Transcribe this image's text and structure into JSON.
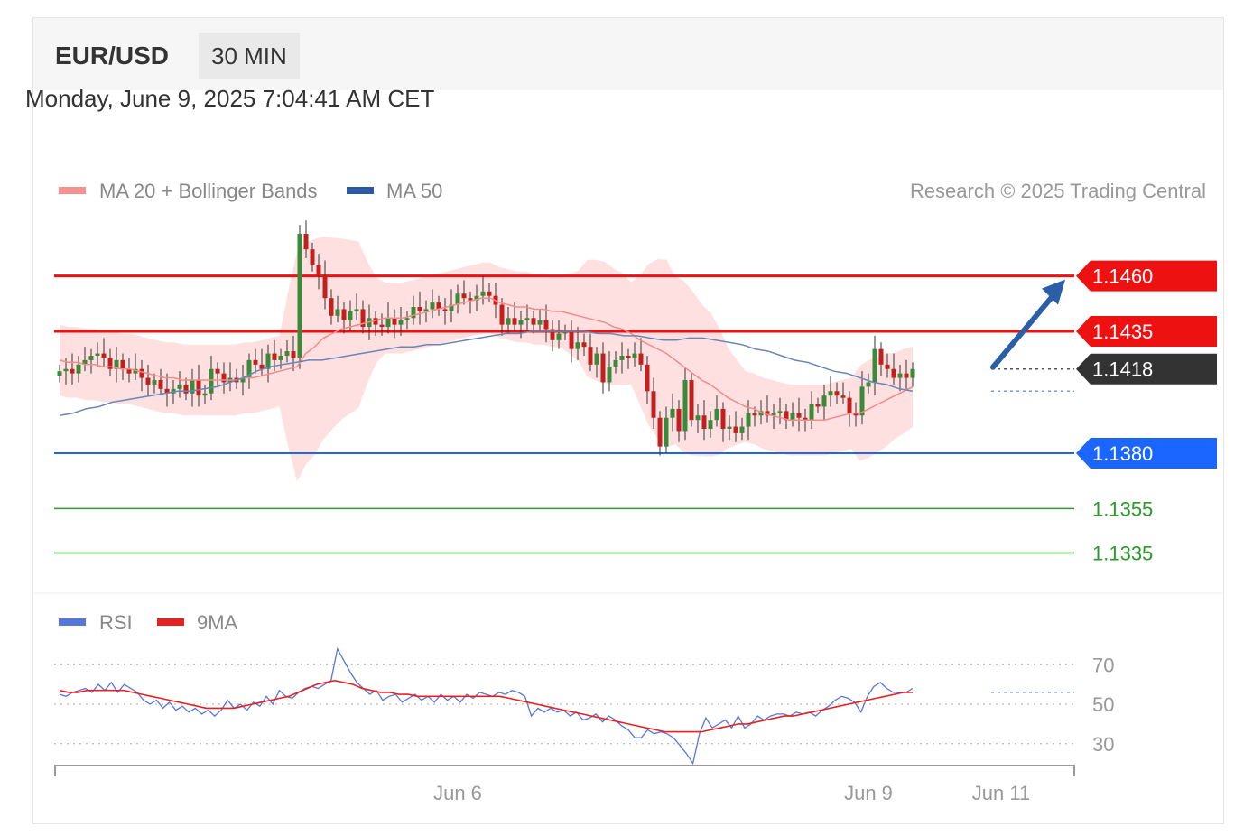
{
  "header": {
    "symbol": "EUR/USD",
    "timeframe": "30 MIN"
  },
  "timestamp": "Monday, June 9, 2025 7:04:41 AM CET",
  "credit": "Research © 2025 Trading Central",
  "legend_main": [
    {
      "label": "MA 20 + Bollinger Bands",
      "color": "#f79090"
    },
    {
      "label": "MA 50",
      "color": "#2a57a6"
    }
  ],
  "legend_rsi": [
    {
      "label": "RSI",
      "color": "#5577dd"
    },
    {
      "label": "9MA",
      "color": "#e82020"
    }
  ],
  "chart_data": [
    {
      "type": "candlestick",
      "title": "EUR/USD",
      "ylim": [
        1.1325,
        1.149
      ],
      "x_ticks": [
        {
          "label": "Jun 6",
          "index": 63
        },
        {
          "label": "Jun 9",
          "index": 128
        },
        {
          "label": "Jun 11",
          "index": 149
        }
      ],
      "levels": [
        {
          "value": 1.146,
          "label": "1.1460",
          "role": "resistance",
          "color": "#ee1111"
        },
        {
          "value": 1.1435,
          "label": "1.1435",
          "role": "resistance",
          "color": "#ee1111"
        },
        {
          "value": 1.1418,
          "label": "1.1418",
          "role": "last price",
          "color": "#333333"
        },
        {
          "value": 1.138,
          "label": "1.1380",
          "role": "pivot",
          "color": "#1a66ff"
        },
        {
          "value": 1.1355,
          "label": "1.1355",
          "role": "support",
          "color": "#2a9a2a"
        },
        {
          "value": 1.1335,
          "label": "1.1335",
          "role": "support",
          "color": "#2a9a2a"
        }
      ],
      "close": [
        1.1417,
        1.1418,
        1.1416,
        1.142,
        1.1422,
        1.1424,
        1.1425,
        1.1423,
        1.1418,
        1.1422,
        1.1418,
        1.1416,
        1.1418,
        1.1414,
        1.1411,
        1.1413,
        1.1409,
        1.1407,
        1.1409,
        1.1411,
        1.1407,
        1.1413,
        1.1406,
        1.1407,
        1.1418,
        1.1416,
        1.1412,
        1.1414,
        1.1412,
        1.1414,
        1.1422,
        1.142,
        1.1418,
        1.1425,
        1.1422,
        1.1424,
        1.1426,
        1.1423,
        1.1479,
        1.1472,
        1.1465,
        1.146,
        1.145,
        1.1442,
        1.1445,
        1.144,
        1.1444,
        1.1445,
        1.1437,
        1.1441,
        1.1438,
        1.1437,
        1.1441,
        1.1438,
        1.144,
        1.1441,
        1.1446,
        1.1444,
        1.1445,
        1.1448,
        1.1445,
        1.1444,
        1.1447,
        1.1452,
        1.145,
        1.1449,
        1.1451,
        1.1453,
        1.1451,
        1.1447,
        1.1438,
        1.1441,
        1.1438,
        1.144,
        1.1441,
        1.1438,
        1.144,
        1.1436,
        1.1431,
        1.1434,
        1.1435,
        1.1427,
        1.143,
        1.1428,
        1.142,
        1.1425,
        1.1412,
        1.1419,
        1.1422,
        1.1424,
        1.1423,
        1.1425,
        1.142,
        1.1408,
        1.1396,
        1.1383,
        1.1396,
        1.14,
        1.139,
        1.1413,
        1.1395,
        1.1397,
        1.1391,
        1.1395,
        1.14,
        1.1391,
        1.1392,
        1.1389,
        1.1392,
        1.1398,
        1.1397,
        1.1399,
        1.1397,
        1.1398,
        1.1399,
        1.1395,
        1.1398,
        1.1396,
        1.1395,
        1.1402,
        1.1401,
        1.1406,
        1.1408,
        1.1406,
        1.1405,
        1.1398,
        1.1397,
        1.141,
        1.1412,
        1.1427,
        1.142,
        1.1418,
        1.1414,
        1.1416,
        1.1414,
        1.1418
      ],
      "ma20": [
        1.1422,
        1.1421,
        1.1421,
        1.142,
        1.142,
        1.1419,
        1.1419,
        1.1418,
        1.1418,
        1.1417,
        1.1416,
        1.1415,
        1.1414,
        1.1414,
        1.1413,
        1.1413,
        1.1413,
        1.1413,
        1.1413,
        1.1413,
        1.1413,
        1.1414,
        1.1414,
        1.1415,
        1.1416,
        1.1417,
        1.1418,
        1.1419,
        1.1425,
        1.1428,
        1.1432,
        1.1434,
        1.1436,
        1.1437,
        1.1438,
        1.1439,
        1.144,
        1.1441,
        1.1441,
        1.1441,
        1.1442,
        1.1443,
        1.1444,
        1.1445,
        1.1446,
        1.1447,
        1.1448,
        1.1449,
        1.145,
        1.145,
        1.1448,
        1.1447,
        1.1446,
        1.1446,
        1.1445,
        1.1445,
        1.1444,
        1.1444,
        1.1443,
        1.1442,
        1.1441,
        1.144,
        1.1439,
        1.1437,
        1.1436,
        1.1434,
        1.1431,
        1.1429,
        1.1427,
        1.1425,
        1.1422,
        1.1419,
        1.1416,
        1.1413,
        1.1411,
        1.1408,
        1.1405,
        1.1403,
        1.1401,
        1.14,
        1.1398,
        1.1397,
        1.1396,
        1.1395,
        1.1395,
        1.1395,
        1.1395,
        1.1395,
        1.1396,
        1.1397,
        1.1398,
        1.1398,
        1.14,
        1.1402,
        1.1404,
        1.1406,
        1.1408,
        1.141
      ],
      "ma50": [
        1.1397,
        1.1398,
        1.14,
        1.1401,
        1.1403,
        1.1404,
        1.1405,
        1.1406,
        1.1407,
        1.1408,
        1.1408,
        1.1409,
        1.141,
        1.1412,
        1.1414,
        1.1417,
        1.1419,
        1.142,
        1.1421,
        1.1422,
        1.1422,
        1.1423,
        1.1424,
        1.1425,
        1.1426,
        1.1427,
        1.1428,
        1.1428,
        1.1429,
        1.1429,
        1.143,
        1.1431,
        1.1432,
        1.1433,
        1.1434,
        1.1434,
        1.1435,
        1.1435,
        1.1435,
        1.1435,
        1.1435,
        1.1434,
        1.1434,
        1.1433,
        1.1433,
        1.1432,
        1.1431,
        1.1431,
        1.1432,
        1.1432,
        1.1431,
        1.143,
        1.1429,
        1.1427,
        1.1426,
        1.1424,
        1.1422,
        1.1421,
        1.1419,
        1.1417,
        1.1416,
        1.1414,
        1.1412,
        1.1411,
        1.1409,
        1.1408
      ],
      "forecast": {
        "from": 1.1418,
        "to": 1.146,
        "direction": "up"
      }
    },
    {
      "type": "line",
      "title": "RSI",
      "ylim": [
        18,
        82
      ],
      "y_ticks": [
        70,
        50,
        30
      ],
      "series": [
        {
          "name": "RSI",
          "color": "#5577dd",
          "values": [
            55,
            54,
            56,
            57,
            58,
            56,
            60,
            57,
            61,
            56,
            60,
            58,
            56,
            52,
            50,
            52,
            48,
            51,
            47,
            49,
            46,
            48,
            45,
            47,
            44,
            47,
            52,
            48,
            50,
            47,
            51,
            49,
            54,
            50,
            57,
            54,
            53,
            56,
            58,
            59,
            58,
            60,
            62,
            78,
            72,
            66,
            61,
            58,
            55,
            57,
            52,
            54,
            55,
            51,
            53,
            55,
            52,
            54,
            51,
            55,
            52,
            54,
            51,
            55,
            53,
            56,
            55,
            54,
            56,
            55,
            57,
            56,
            54,
            44,
            48,
            46,
            48,
            46,
            47,
            44,
            46,
            42,
            43,
            45,
            41,
            44,
            42,
            39,
            37,
            33,
            33,
            37,
            35,
            36,
            35,
            33,
            29,
            25,
            20,
            35,
            43,
            38,
            40,
            42,
            38,
            44,
            38,
            40,
            44,
            42,
            44,
            45,
            45,
            44,
            46,
            45,
            46,
            44,
            47,
            49,
            52,
            54,
            53,
            51,
            46,
            54,
            59,
            61,
            58,
            56,
            56,
            56,
            58
          ]
        },
        {
          "name": "9MA",
          "color": "#e82020",
          "values": [
            57,
            56,
            56,
            57,
            57,
            57,
            57,
            57,
            56,
            55,
            54,
            53,
            52,
            51,
            50,
            49,
            48,
            48,
            48,
            48,
            49,
            50,
            51,
            52,
            53,
            54,
            56,
            58,
            60,
            61,
            62,
            61,
            60,
            58,
            57,
            56,
            56,
            55,
            55,
            54,
            54,
            54,
            54,
            54,
            54,
            54,
            54,
            54,
            54,
            53,
            52,
            51,
            50,
            49,
            48,
            47,
            46,
            45,
            44,
            43,
            42,
            41,
            40,
            39,
            38,
            37,
            36,
            36,
            36,
            36,
            36,
            37,
            38,
            39,
            40,
            40,
            41,
            42,
            43,
            44,
            44,
            45,
            46,
            47,
            48,
            49,
            50,
            51,
            52,
            53,
            54,
            55,
            56,
            56
          ]
        }
      ]
    }
  ]
}
